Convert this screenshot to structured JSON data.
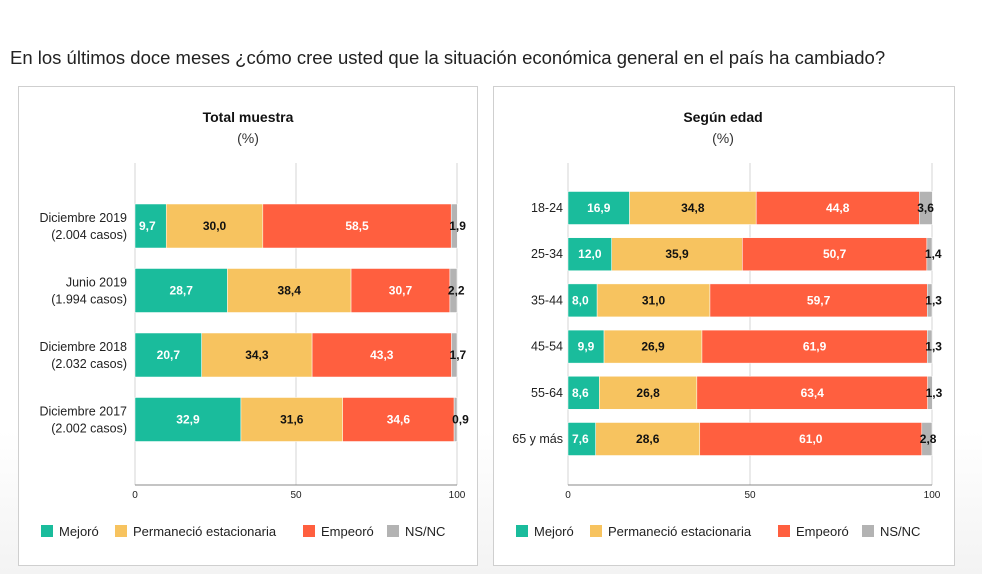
{
  "question": "En los últimos doce meses ¿cómo cree usted que la situación económica general en el país ha cambiado?",
  "colors": {
    "mejoro": "#1abc9c",
    "permanecio": "#f7c35f",
    "empeoro": "#ff5f3f",
    "nsnc": "#b3b3b3"
  },
  "chart_data": [
    {
      "type": "bar",
      "orientation": "horizontal",
      "stacked": true,
      "title": "Total muestra",
      "subtitle": "(%)",
      "xlim": [
        0,
        100
      ],
      "xticks": [
        "0",
        "50",
        "100"
      ],
      "legend_position": "bottom",
      "categories": [
        [
          "Diciembre 2019",
          "(2.004 casos)"
        ],
        [
          "Junio 2019",
          "(1.994 casos)"
        ],
        [
          "Diciembre 2018",
          "(2.032 casos)"
        ],
        [
          "Diciembre 2017",
          "(2.002 casos)"
        ]
      ],
      "series": [
        {
          "name": "Mejoró",
          "color": "#1abc9c",
          "values": [
            9.7,
            28.7,
            20.7,
            32.9
          ],
          "labels": [
            "9,7",
            "28,7",
            "20,7",
            "32,9"
          ]
        },
        {
          "name": "Permaneció estacionaria",
          "color": "#f7c35f",
          "values": [
            30.0,
            38.4,
            34.3,
            31.6
          ],
          "labels": [
            "30,0",
            "38,4",
            "34,3",
            "31,6"
          ]
        },
        {
          "name": "Empeoró",
          "color": "#ff5f3f",
          "values": [
            58.5,
            30.7,
            43.3,
            34.6
          ],
          "labels": [
            "58,5",
            "30,7",
            "43,3",
            "34,6"
          ]
        },
        {
          "name": "NS/NC",
          "color": "#b3b3b3",
          "values": [
            1.9,
            2.2,
            1.7,
            0.9
          ],
          "labels": [
            "1,9",
            "2,2",
            "1,7",
            "0,9"
          ]
        }
      ]
    },
    {
      "type": "bar",
      "orientation": "horizontal",
      "stacked": true,
      "title": "Según edad",
      "subtitle": "(%)",
      "xlim": [
        0,
        100
      ],
      "xticks": [
        "0",
        "50",
        "100"
      ],
      "legend_position": "bottom",
      "categories": [
        [
          "18-24"
        ],
        [
          "25-34"
        ],
        [
          "35-44"
        ],
        [
          "45-54"
        ],
        [
          "55-64"
        ],
        [
          "65 y más"
        ]
      ],
      "series": [
        {
          "name": "Mejoró",
          "color": "#1abc9c",
          "values": [
            16.9,
            12.0,
            8.0,
            9.9,
            8.6,
            7.6
          ],
          "labels": [
            "16,9",
            "12,0",
            "8,0",
            "9,9",
            "8,6",
            "7,6"
          ]
        },
        {
          "name": "Permaneció estacionaria",
          "color": "#f7c35f",
          "values": [
            34.8,
            35.9,
            31.0,
            26.9,
            26.8,
            28.6
          ],
          "labels": [
            "34,8",
            "35,9",
            "31,0",
            "26,9",
            "26,8",
            "28,6"
          ]
        },
        {
          "name": "Empeoró",
          "color": "#ff5f3f",
          "values": [
            44.8,
            50.7,
            59.7,
            61.9,
            63.4,
            61.0
          ],
          "labels": [
            "44,8",
            "50,7",
            "59,7",
            "61,9",
            "63,4",
            "61,0"
          ]
        },
        {
          "name": "NS/NC",
          "color": "#b3b3b3",
          "values": [
            3.6,
            1.4,
            1.3,
            1.3,
            1.3,
            2.8
          ],
          "labels": [
            "3,6",
            "1,4",
            "1,3",
            "1,3",
            "1,3",
            "2,8"
          ]
        }
      ]
    }
  ]
}
